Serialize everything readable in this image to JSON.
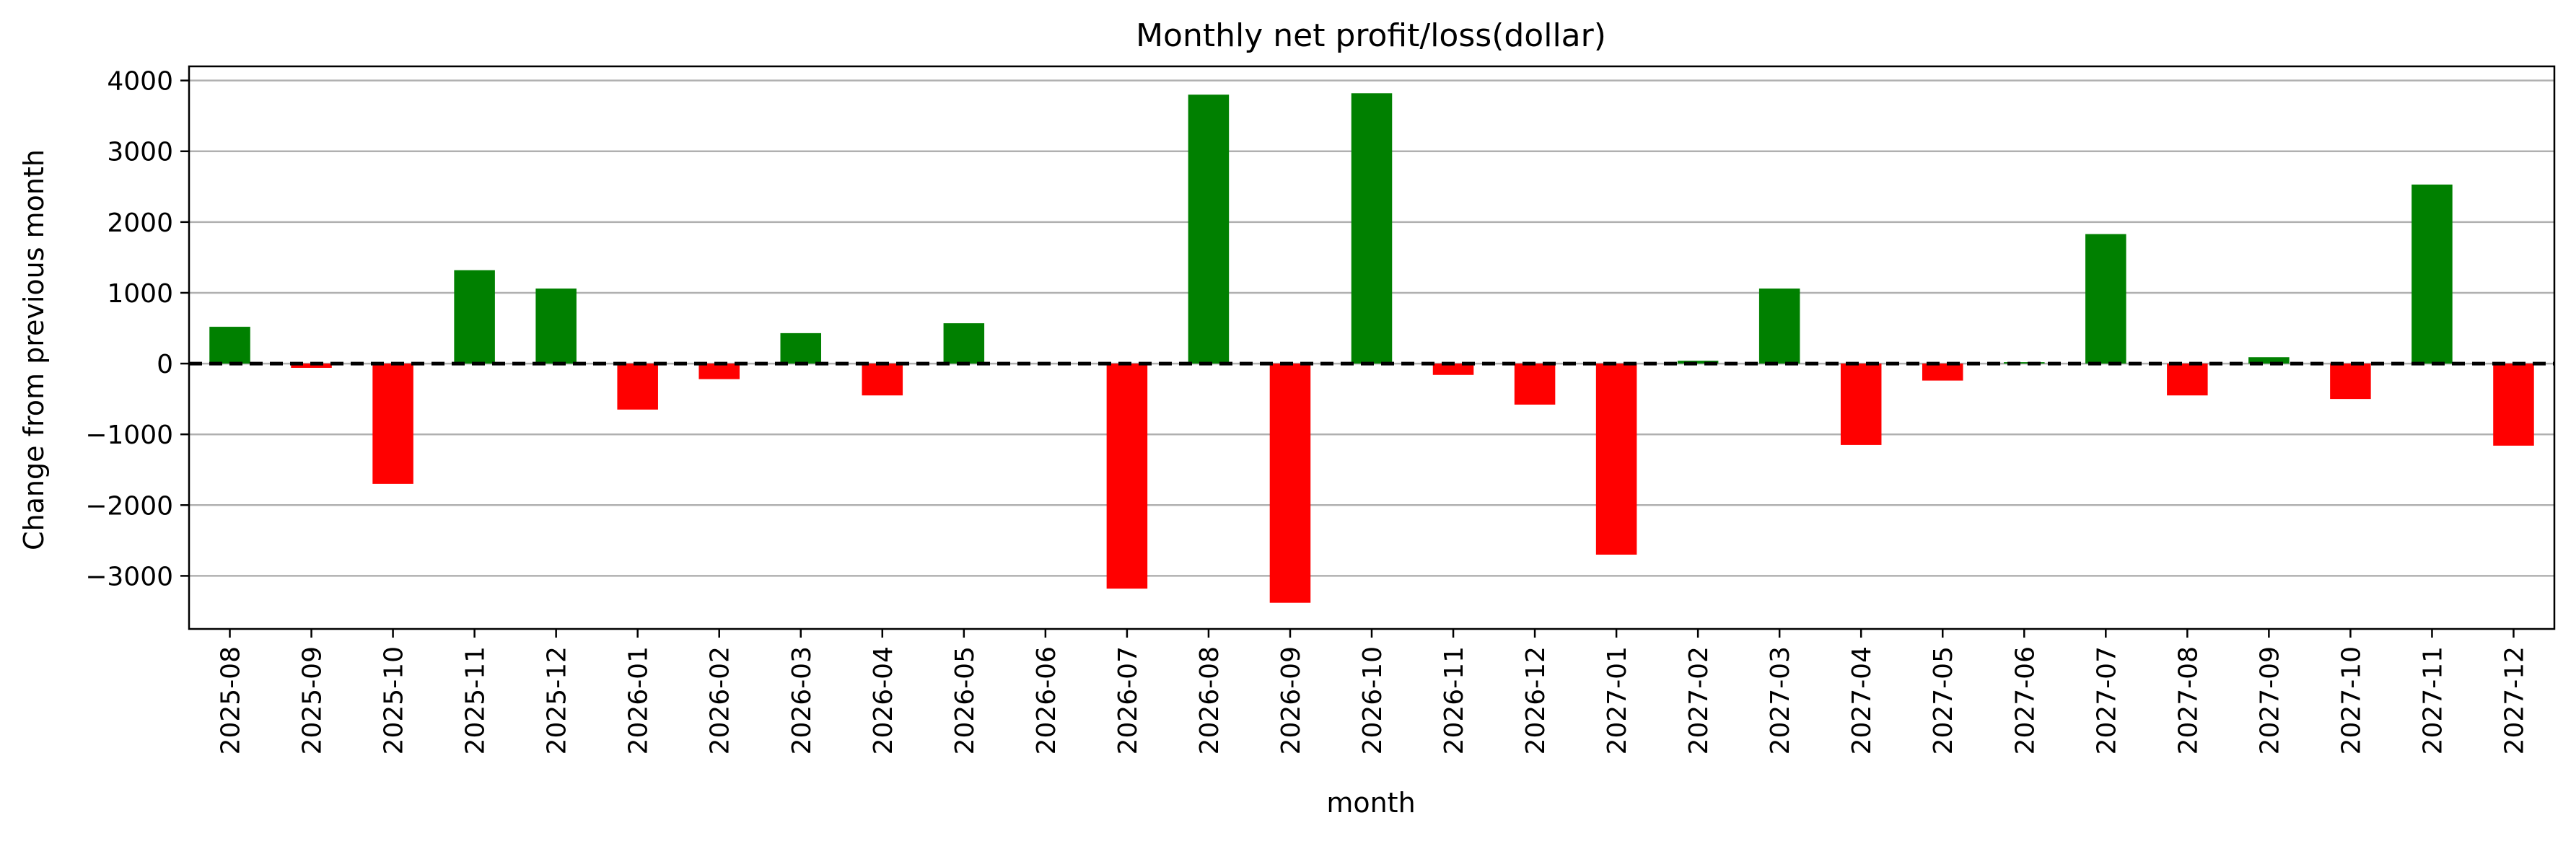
{
  "chart_data": {
    "type": "bar",
    "title": "Monthly net profit/loss(dollar)",
    "xlabel": "month",
    "ylabel": "Change from previous month",
    "ylim": [
      -3750,
      4200
    ],
    "yticks": [
      -3000,
      -2000,
      -1000,
      0,
      1000,
      2000,
      3000,
      4000
    ],
    "ytick_labels": [
      "−3000",
      "−2000",
      "−1000",
      "0",
      "1000",
      "2000",
      "3000",
      "4000"
    ],
    "grid": "horizontal",
    "zero_line": "dashed black",
    "colors": {
      "positive": "#008000",
      "negative": "#ff0000",
      "grid": "#b0b0b0"
    },
    "categories": [
      "2025-08",
      "2025-09",
      "2025-10",
      "2025-11",
      "2025-12",
      "2026-01",
      "2026-02",
      "2026-03",
      "2026-04",
      "2026-05",
      "2026-06",
      "2026-07",
      "2026-08",
      "2026-09",
      "2026-10",
      "2026-11",
      "2026-12",
      "2027-01",
      "2027-02",
      "2027-03",
      "2027-04",
      "2027-05",
      "2027-06",
      "2027-07",
      "2027-08",
      "2027-09",
      "2027-10",
      "2027-11",
      "2027-12"
    ],
    "values": [
      520,
      -60,
      -1700,
      1320,
      1060,
      -650,
      -220,
      430,
      -450,
      570,
      0,
      -3180,
      3800,
      -3380,
      3820,
      -160,
      -580,
      -2700,
      40,
      1060,
      -1150,
      -240,
      20,
      1830,
      -450,
      90,
      -500,
      2530,
      -1160
    ]
  }
}
